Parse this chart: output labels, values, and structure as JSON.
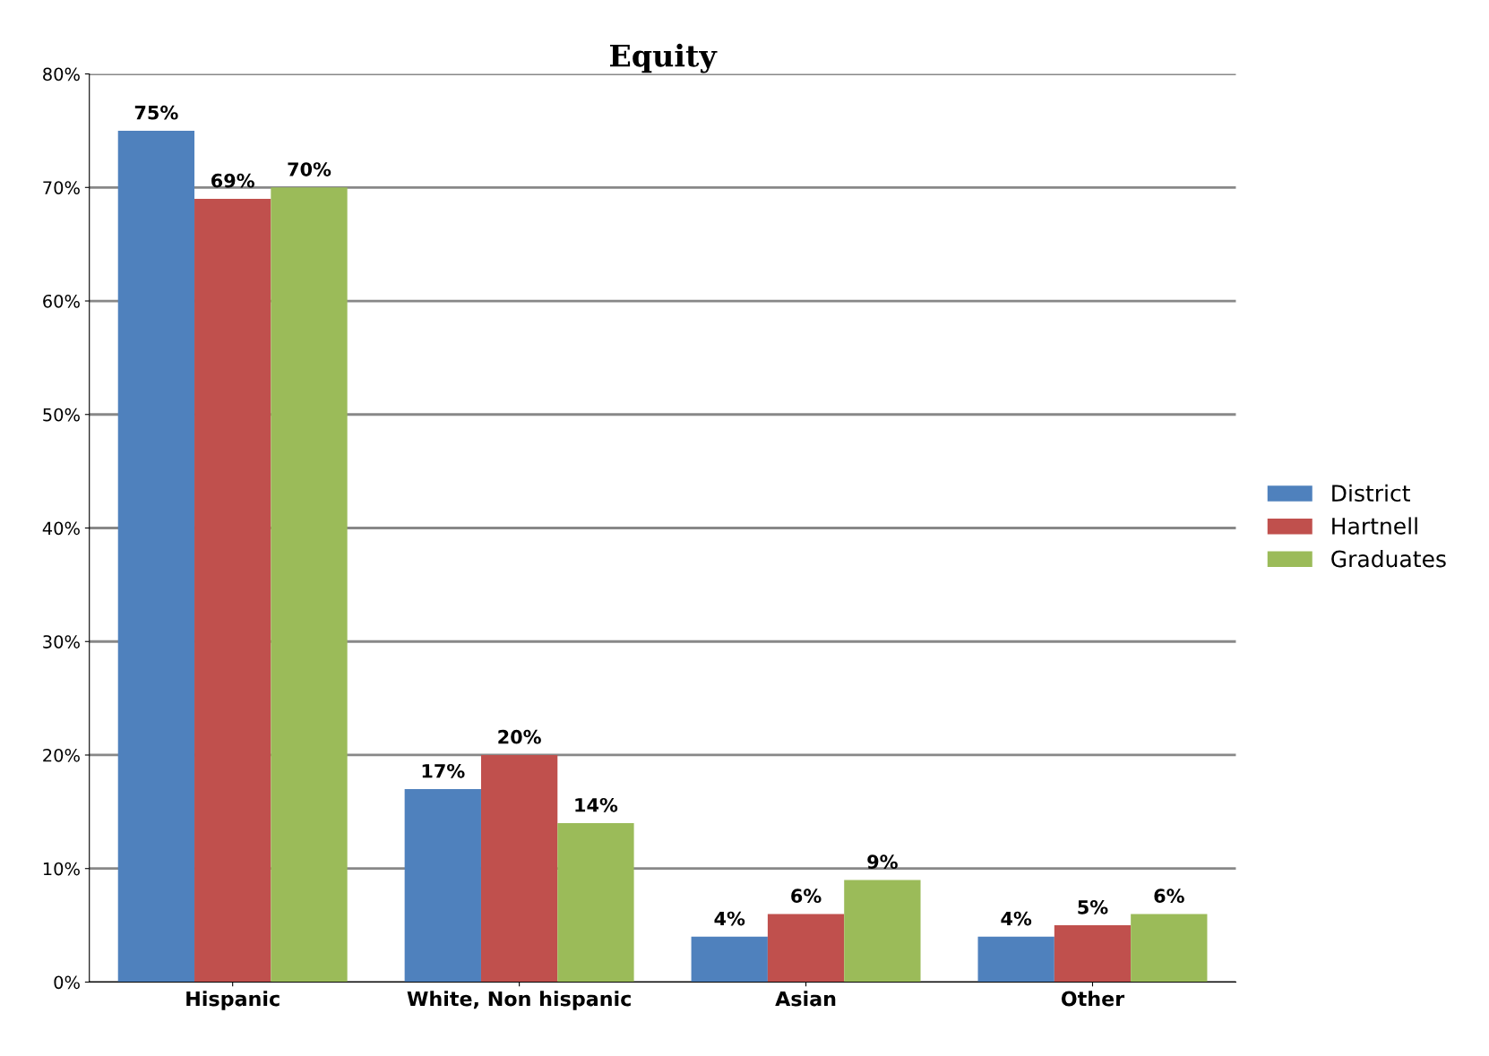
{
  "chart_data": {
    "type": "bar",
    "title": "Equity",
    "categories": [
      "Hispanic",
      "White, Non hispanic",
      "Asian",
      "Other"
    ],
    "series": [
      {
        "name": "District",
        "color": "#4f81bd",
        "values": [
          75,
          17,
          4,
          4
        ],
        "value_labels": [
          "75%",
          "17%",
          "4%",
          "4%"
        ]
      },
      {
        "name": "Hartnell",
        "color": "#c0504d",
        "values": [
          69,
          20,
          6,
          5
        ],
        "value_labels": [
          "69%",
          "20%",
          "6%",
          "5%"
        ]
      },
      {
        "name": "Graduates",
        "color": "#9bbb59",
        "values": [
          70,
          14,
          9,
          6
        ],
        "value_labels": [
          "70%",
          "14%",
          "9%",
          "6%"
        ]
      }
    ],
    "ylim": [
      0,
      80
    ],
    "yticks": [
      {
        "value": 0,
        "label": "0%"
      },
      {
        "value": 10,
        "label": "10%"
      },
      {
        "value": 20,
        "label": "20%"
      },
      {
        "value": 30,
        "label": "30%"
      },
      {
        "value": 40,
        "label": "40%"
      },
      {
        "value": 50,
        "label": "50%"
      },
      {
        "value": 60,
        "label": "60%"
      },
      {
        "value": 70,
        "label": "70%"
      },
      {
        "value": 80,
        "label": "80%"
      }
    ],
    "grid": "y",
    "legend": "right"
  }
}
